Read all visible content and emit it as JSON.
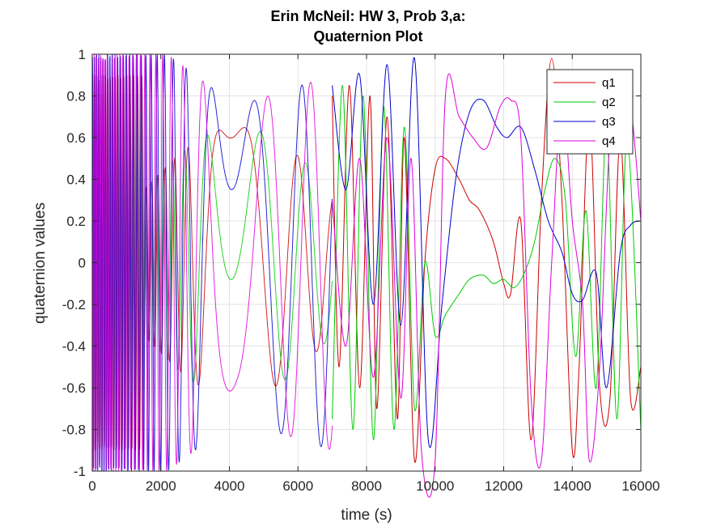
{
  "chart_data": {
    "type": "line",
    "title": "Erin McNeil: HW 3, Prob 3,a:",
    "subtitle": "Quaternion Plot",
    "xlabel": "time (s)",
    "ylabel": "quaternion values",
    "xlim": [
      0,
      16000
    ],
    "ylim": [
      -1,
      1
    ],
    "xticks": [
      0,
      2000,
      4000,
      6000,
      8000,
      10000,
      12000,
      14000,
      16000
    ],
    "yticks": [
      -1,
      -0.8,
      -0.6,
      -0.4,
      -0.2,
      0,
      0.2,
      0.4,
      0.6,
      0.8,
      1
    ],
    "xtick_labels": [
      "0",
      "2000",
      "4000",
      "6000",
      "8000",
      "10000",
      "12000",
      "14000",
      "16000"
    ],
    "ytick_labels": [
      "-1",
      "-0.8",
      "-0.6",
      "-0.4",
      "-0.2",
      "0",
      "0.2",
      "0.4",
      "0.6",
      "0.8",
      "1"
    ],
    "grid": true,
    "legend_position": "top-right",
    "series": [
      {
        "name": "q1",
        "color": "#cc0000",
        "x": [
          7000,
          7200,
          7500,
          7800,
          8100,
          8300,
          8600,
          8900,
          9100,
          9400,
          9700,
          10000,
          10300,
          10700,
          11000,
          11300,
          11700,
          12000,
          12200,
          12500,
          12800,
          13100,
          13400,
          13700,
          14000,
          14200,
          14500,
          14800,
          15100,
          15400,
          15700,
          16000
        ],
        "y": [
          0.8,
          -0.5,
          0.85,
          -0.6,
          0.8,
          -0.7,
          0.7,
          -0.75,
          0.6,
          -0.95,
          0.0,
          0.45,
          0.5,
          0.4,
          0.3,
          0.25,
          0.1,
          -0.1,
          -0.15,
          0.2,
          -0.85,
          0.3,
          0.98,
          0.3,
          -0.9,
          -0.5,
          0.7,
          -0.6,
          -0.65,
          0.6,
          -0.65,
          -0.5
        ]
      },
      {
        "name": "q2",
        "color": "#00cc00",
        "x": [
          7000,
          7300,
          7600,
          7900,
          8200,
          8500,
          8800,
          9100,
          9400,
          9700,
          10000,
          10300,
          10700,
          11000,
          11400,
          11700,
          12000,
          12300,
          12600,
          12900,
          13200,
          13500,
          13800,
          14100,
          14400,
          14700,
          15000,
          15300,
          15600,
          16000
        ],
        "y": [
          -0.75,
          0.85,
          -0.8,
          0.8,
          -0.85,
          0.75,
          -0.8,
          0.65,
          -0.7,
          0.0,
          -0.35,
          -0.25,
          -0.15,
          -0.08,
          -0.06,
          -0.1,
          -0.08,
          -0.12,
          -0.05,
          0.1,
          0.35,
          0.5,
          0.3,
          -0.45,
          0.25,
          -0.6,
          0.65,
          -0.75,
          0.6,
          -0.8
        ]
      },
      {
        "name": "q3",
        "color": "#0000cc",
        "x": [
          7000,
          7400,
          7800,
          8200,
          8600,
          9000,
          9400,
          9800,
          10200,
          10600,
          11000,
          11400,
          11800,
          12100,
          12500,
          12900,
          13300,
          13700,
          14000,
          14300,
          14700,
          15000,
          15400,
          15700,
          16000
        ],
        "y": [
          0.85,
          0.35,
          0.9,
          -0.2,
          0.95,
          -0.3,
          0.98,
          -0.85,
          -0.2,
          0.4,
          0.72,
          0.78,
          0.65,
          0.6,
          0.65,
          0.45,
          0.2,
          0.05,
          -0.15,
          -0.18,
          -0.05,
          -0.6,
          0.05,
          0.18,
          0.2
        ]
      },
      {
        "name": "q4",
        "color": "#dd00dd",
        "x": [
          7000,
          7400,
          7800,
          8200,
          8600,
          9000,
          9300,
          9600,
          10000,
          10300,
          10700,
          11100,
          11500,
          11900,
          12200,
          12500,
          12800,
          13100,
          13400,
          13700,
          14000,
          14300,
          14500,
          14800,
          15100,
          15400,
          15700,
          16000
        ],
        "y": [
          0.3,
          -0.4,
          0.5,
          -0.55,
          0.6,
          -0.65,
          0.5,
          -0.9,
          -0.95,
          0.8,
          0.7,
          0.6,
          0.55,
          0.75,
          0.78,
          0.6,
          -0.65,
          -0.95,
          0.0,
          0.8,
          0.2,
          -0.2,
          -0.95,
          -0.5,
          0.6,
          0.65,
          0.75,
          0.2
        ]
      }
    ]
  }
}
